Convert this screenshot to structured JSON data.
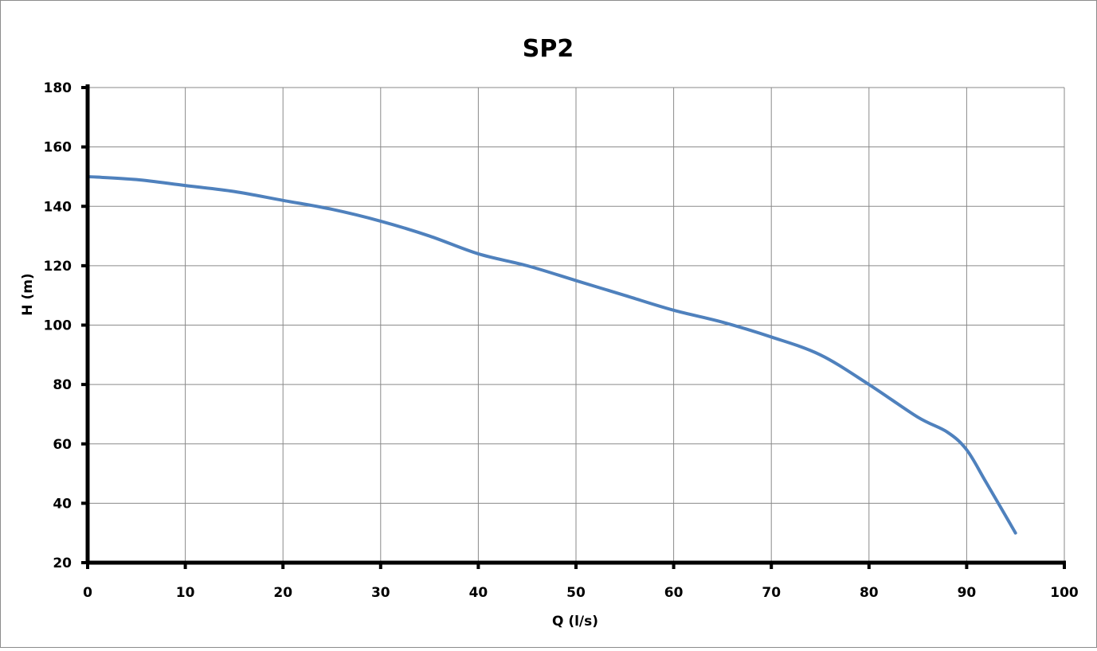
{
  "chart_data": {
    "type": "line",
    "title": "SP2",
    "xlabel": "Q (l/s)",
    "ylabel": "H (m)",
    "xlim": [
      0,
      100
    ],
    "ylim": [
      20,
      180
    ],
    "x_ticks": [
      0,
      10,
      20,
      30,
      40,
      50,
      60,
      70,
      80,
      90,
      100
    ],
    "y_ticks": [
      20,
      40,
      60,
      80,
      100,
      120,
      140,
      160,
      180
    ],
    "grid": true,
    "legend": "none",
    "series": [
      {
        "color": "#4f81bd",
        "x": [
          0,
          5,
          10,
          15,
          20,
          25,
          30,
          35,
          40,
          45,
          50,
          55,
          60,
          65,
          70,
          75,
          80,
          85,
          88,
          90,
          92,
          95
        ],
        "y": [
          150,
          149,
          147,
          145,
          142,
          139,
          135,
          130,
          124,
          120,
          115,
          110,
          105,
          101,
          96,
          90,
          80,
          69,
          64,
          58,
          47,
          30
        ]
      }
    ]
  }
}
